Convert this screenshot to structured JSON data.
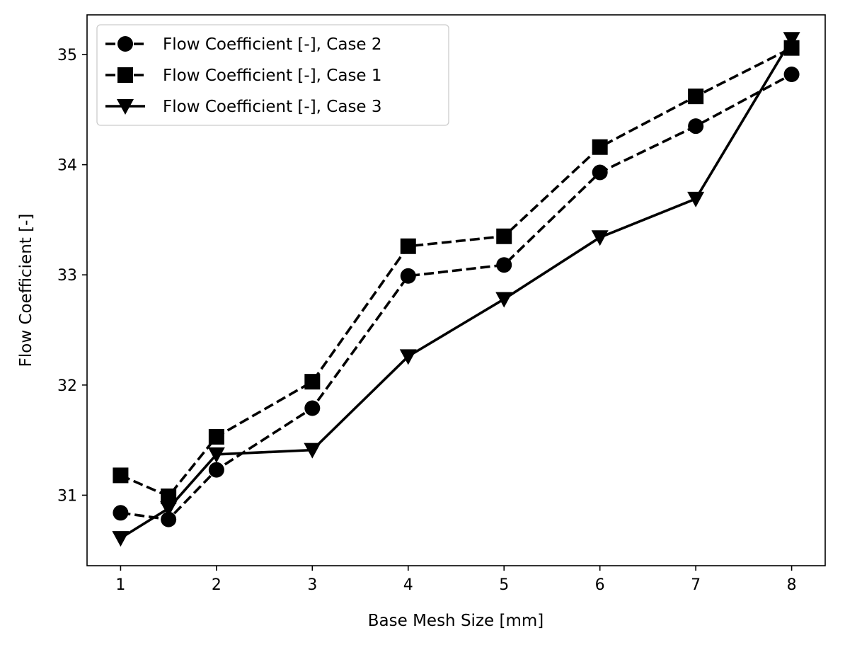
{
  "chart_data": {
    "type": "line",
    "title": "",
    "xlabel": "Base Mesh Size [mm]",
    "ylabel": "Flow Coefficient [-]",
    "xlim": [
      0.65,
      8.35
    ],
    "ylim": [
      30.36,
      35.36
    ],
    "xticks": [
      1,
      2,
      3,
      4,
      5,
      6,
      7,
      8
    ],
    "xtick_labels": [
      "1",
      "2",
      "3",
      "4",
      "5",
      "6",
      "7",
      "8"
    ],
    "yticks": [
      31,
      32,
      33,
      34,
      35
    ],
    "ytick_labels": [
      "31",
      "32",
      "33",
      "34",
      "35"
    ],
    "grid": false,
    "legend_position": "top-left",
    "x": [
      1,
      1.5,
      2,
      3,
      4,
      5,
      6,
      7,
      8
    ],
    "series": [
      {
        "name": "Flow Coefficient [-], Case 2",
        "marker": "circle",
        "linestyle": "dashed",
        "color": "#000000",
        "values": [
          30.84,
          30.78,
          31.23,
          31.79,
          32.99,
          33.09,
          33.93,
          34.35,
          34.82
        ]
      },
      {
        "name": "Flow Coefficient [-], Case 1",
        "marker": "square",
        "linestyle": "dashed",
        "color": "#000000",
        "values": [
          31.18,
          30.99,
          31.53,
          32.03,
          33.26,
          33.35,
          34.16,
          34.62,
          35.06
        ]
      },
      {
        "name": "Flow Coefficient [-], Case 3",
        "marker": "triangle-down",
        "linestyle": "solid",
        "color": "#000000",
        "values": [
          30.61,
          30.88,
          31.37,
          31.41,
          32.26,
          32.78,
          33.34,
          33.69,
          35.14
        ]
      }
    ]
  }
}
